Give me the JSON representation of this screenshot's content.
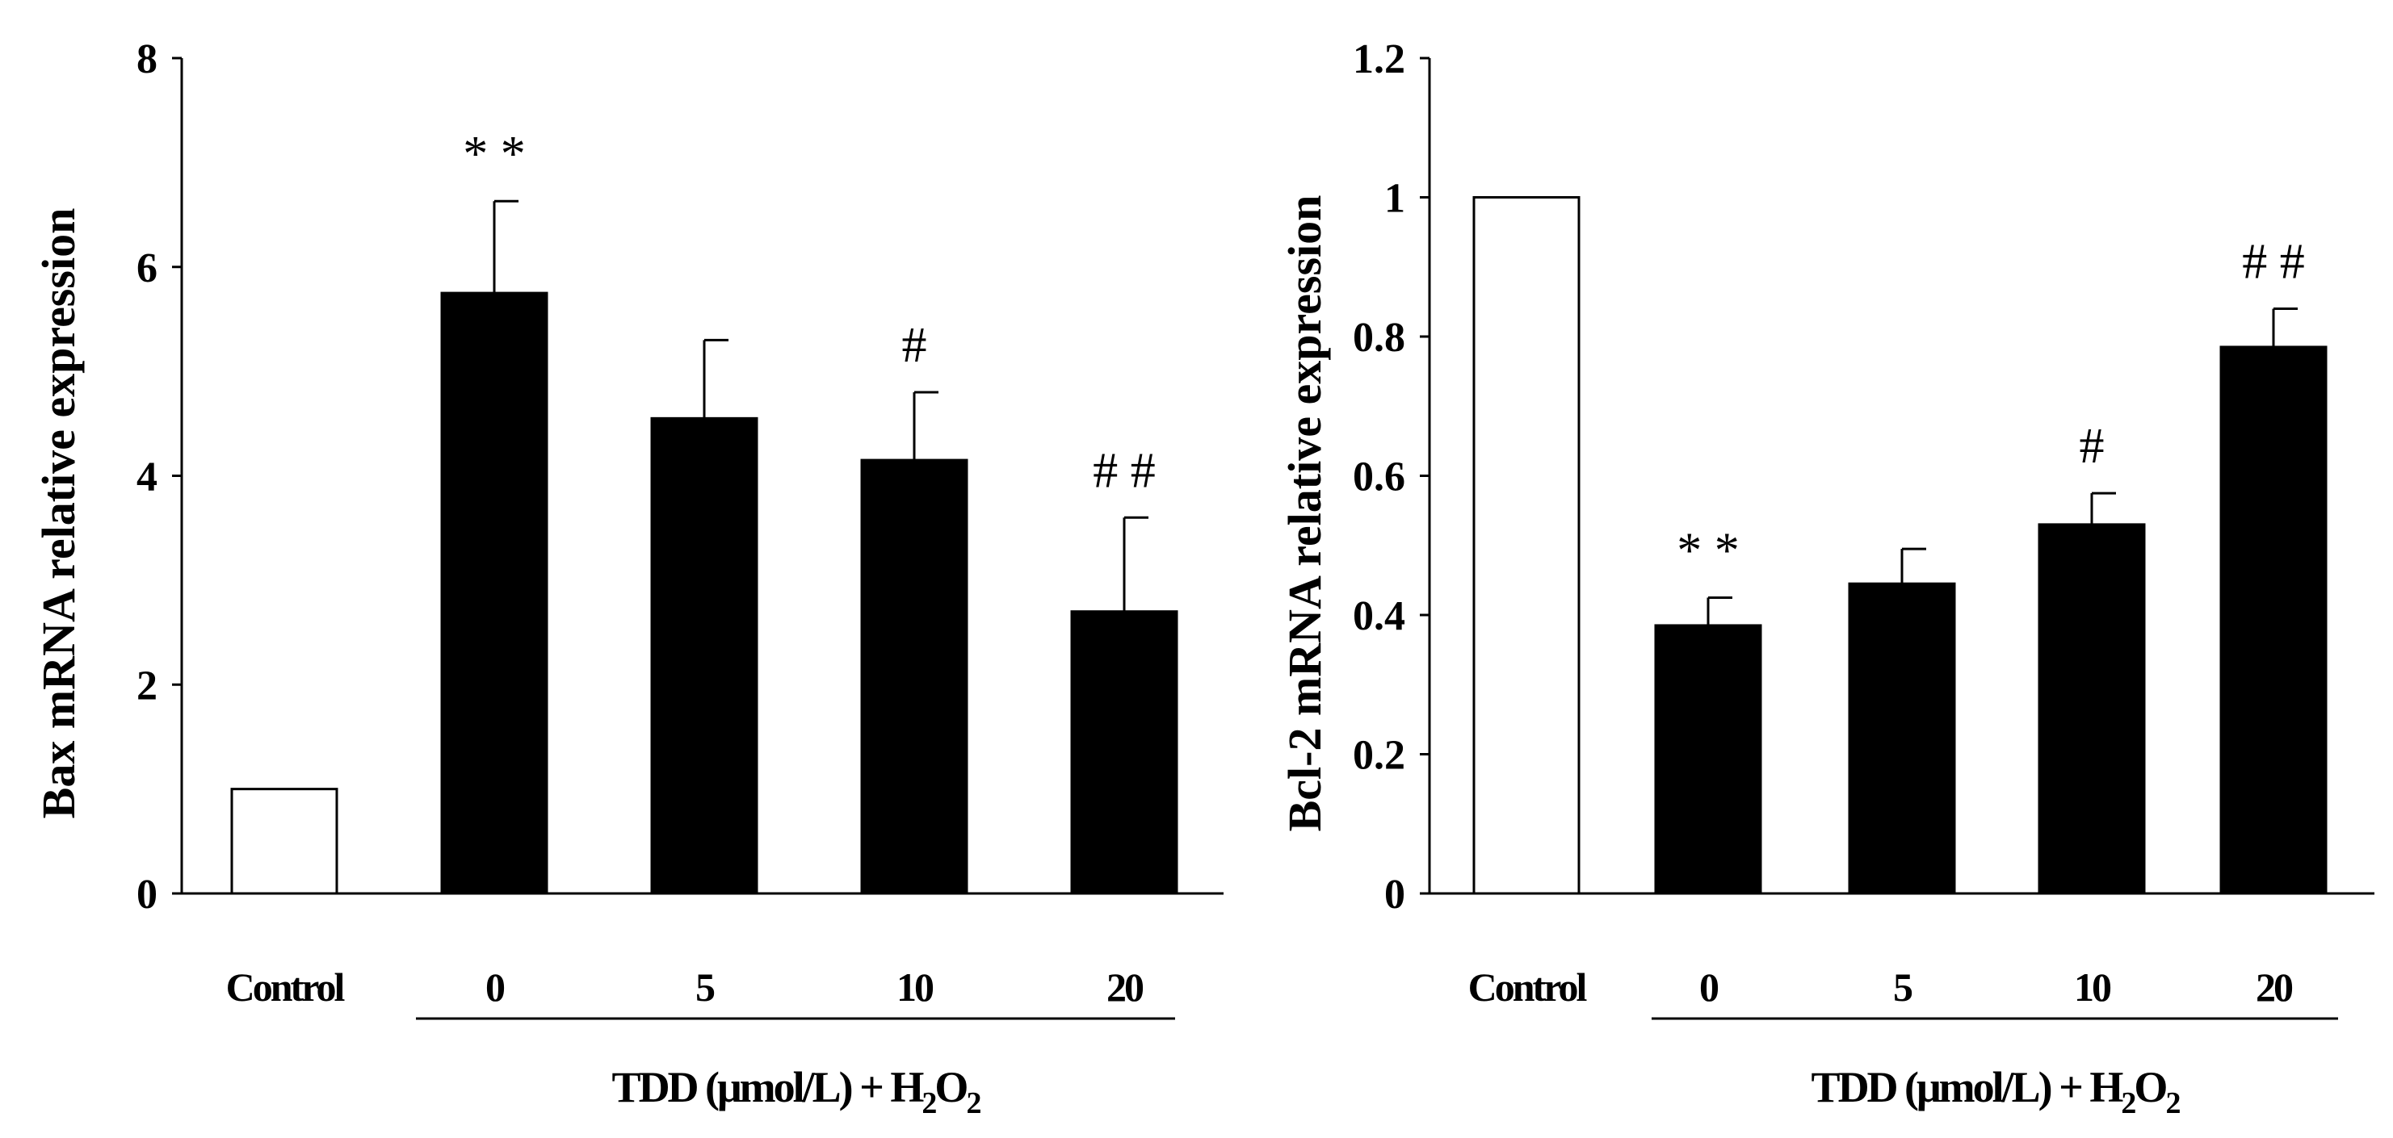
{
  "chart_data": [
    {
      "type": "bar",
      "categories": [
        "Control",
        "0",
        "5",
        "10",
        "20"
      ],
      "values": [
        1.0,
        5.75,
        4.55,
        4.15,
        2.7
      ],
      "errors": [
        0,
        0.88,
        0.75,
        0.65,
        0.9
      ],
      "fills": [
        "#ffffff",
        "#000000",
        "#000000",
        "#000000",
        "#000000"
      ],
      "annotations": [
        "",
        "* *",
        "",
        "#",
        "# #"
      ],
      "ylabel": "Bax mRNA relative expression",
      "ylim": [
        0,
        8
      ],
      "yticks": [
        "0",
        "2",
        "4",
        "6",
        "8"
      ],
      "ytick_values": [
        0,
        2,
        4,
        6,
        8
      ],
      "group_label": {
        "prefix": "TDD (μmol/L) + H",
        "sub1": "2",
        "mid": "O",
        "sub2": "2"
      }
    },
    {
      "type": "bar",
      "categories": [
        "Control",
        "0",
        "5",
        "10",
        "20"
      ],
      "values": [
        1.0,
        0.385,
        0.445,
        0.53,
        0.785
      ],
      "errors": [
        0,
        0.04,
        0.05,
        0.045,
        0.055
      ],
      "fills": [
        "#ffffff",
        "#000000",
        "#000000",
        "#000000",
        "#000000"
      ],
      "annotations": [
        "",
        "* *",
        "",
        "#",
        "# #"
      ],
      "ylabel": "Bcl-2 mRNA relative expression",
      "ylim": [
        0,
        1.2
      ],
      "yticks": [
        "0",
        "0.2",
        "0.4",
        "0.6",
        "0.8",
        "1",
        "1.2"
      ],
      "ytick_values": [
        0,
        0.2,
        0.4,
        0.6,
        0.8,
        1.0,
        1.2
      ],
      "group_label": {
        "prefix": "TDD (μmol/L) + H",
        "sub1": "2",
        "mid": "O",
        "sub2": "2"
      }
    }
  ]
}
